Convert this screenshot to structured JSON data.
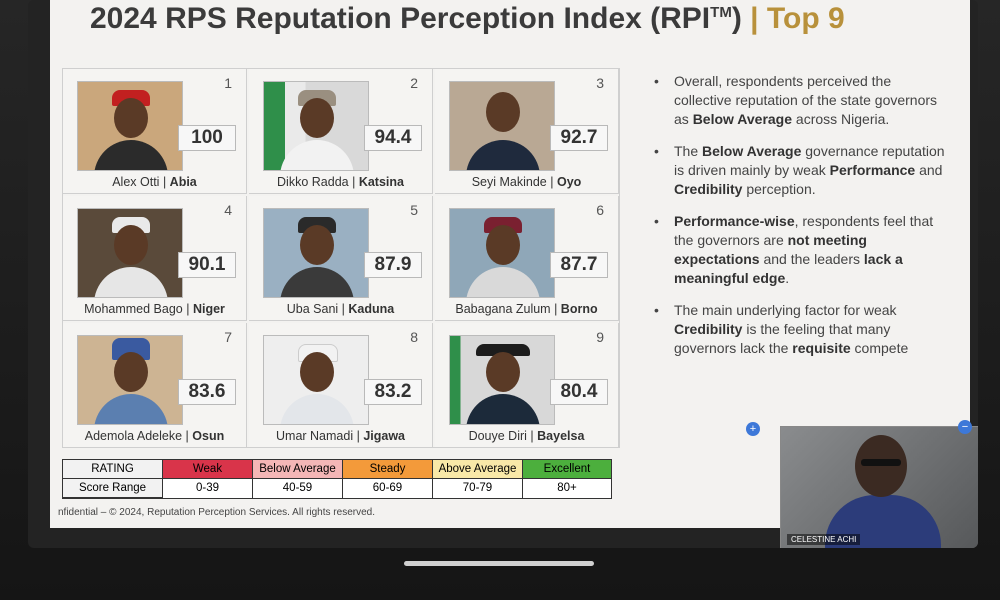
{
  "slide": {
    "title_main": "2024 RPS Reputation Perception Index (RPI",
    "title_sup": "TM",
    "title_close": ")",
    "title_sep": "|",
    "title_top": "Top 9"
  },
  "governors": [
    {
      "rank": "1",
      "score": "100",
      "name": "Alex Otti",
      "state": "Abia"
    },
    {
      "rank": "2",
      "score": "94.4",
      "name": "Dikko Radda",
      "state": "Katsina"
    },
    {
      "rank": "3",
      "score": "92.7",
      "name": "Seyi Makinde",
      "state": "Oyo"
    },
    {
      "rank": "4",
      "score": "90.1",
      "name": "Mohammed Bago",
      "state": "Niger"
    },
    {
      "rank": "5",
      "score": "87.9",
      "name": "Uba Sani",
      "state": "Kaduna"
    },
    {
      "rank": "6",
      "score": "87.7",
      "name": "Babagana Zulum",
      "state": "Borno"
    },
    {
      "rank": "7",
      "score": "83.6",
      "name": "Ademola Adeleke",
      "state": "Osun"
    },
    {
      "rank": "8",
      "score": "83.2",
      "name": "Umar Namadi",
      "state": "Jigawa"
    },
    {
      "rank": "9",
      "score": "80.4",
      "name": "Douye Diri",
      "state": "Bayelsa"
    }
  ],
  "bullets": [
    {
      "p1": "Overall, respondents perceived the collective reputation of the state governors as ",
      "b1": "Below Average",
      "p2": " across Nigeria.",
      "b2": "",
      "p3": "",
      "b3": "",
      "p4": ""
    },
    {
      "p1": "The ",
      "b1": "Below Average",
      "p2": " governance reputation is driven mainly by weak ",
      "b2": "Performance",
      "p3": " and ",
      "b3": "Credibility",
      "p4": " perception."
    },
    {
      "p1": "",
      "b1": "Performance-wise",
      "p2": ", respondents feel that the governors are ",
      "b2": "not meeting expectations",
      "p3": " and the leaders ",
      "b3": "lack a meaningful edge",
      "p4": "."
    },
    {
      "p1": "The main underlying factor for weak ",
      "b1": "Credibility",
      "p2": " is the feeling that many governors lack the ",
      "b2": "requisite",
      "p3": " compete",
      "b3": "",
      "p4": ""
    }
  ],
  "bullet_dot": "•",
  "legend": {
    "rating_label": "RATING",
    "range_label": "Score Range",
    "levels": [
      {
        "name": "Weak",
        "range": "0-39",
        "color": "#d9344a"
      },
      {
        "name": "Below Average",
        "range": "40-59",
        "color": "#f4b6b6"
      },
      {
        "name": "Steady",
        "range": "60-69",
        "color": "#f39a3a"
      },
      {
        "name": "Above Average",
        "range": "70-79",
        "color": "#f8e8a8"
      },
      {
        "name": "Excellent",
        "range": "80+",
        "color": "#4caf3d"
      }
    ]
  },
  "footer": "nfidential – © 2024, Reputation Perception Services. All rights reserved.",
  "video": {
    "participant_name": "CELESTINE ACHI",
    "plus_icon": "+",
    "minus_icon": "−"
  }
}
